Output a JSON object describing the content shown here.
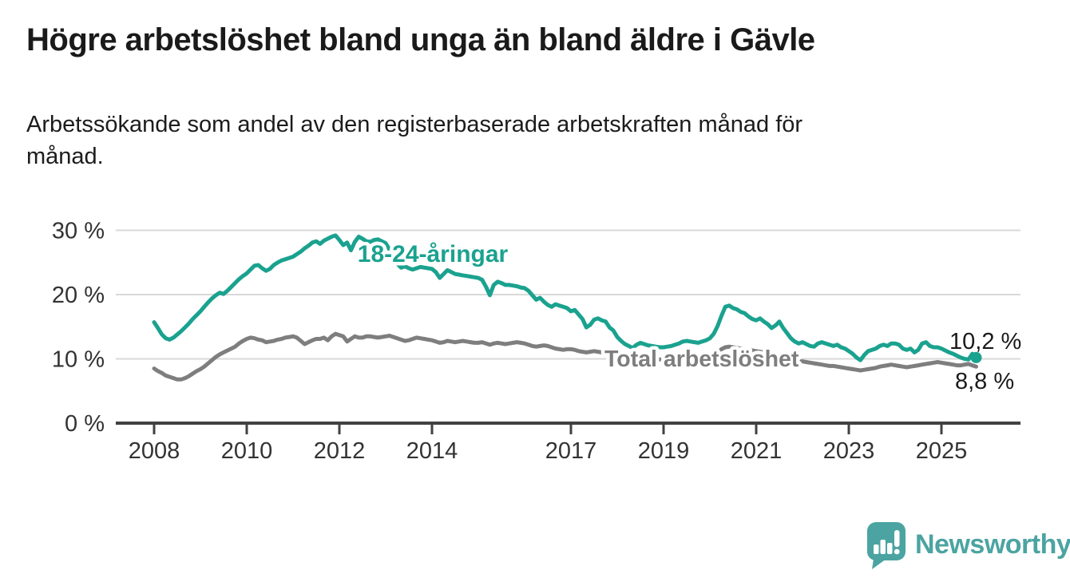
{
  "page": {
    "title": "Högre arbetslöshet bland unga än bland äldre i Gävle",
    "subtitle": "Arbetssökande som andel av den registerbaserade arbetskraften månad för månad."
  },
  "branding": {
    "name": "Newsworthy",
    "color": "#4ba4a1",
    "logo_icon": "speech-bubble-bar-chart-icon"
  },
  "colors": {
    "youth_series": "#1aa28f",
    "total_series": "#7e7e7e",
    "axis_text": "#333333",
    "axis_line": "#414141",
    "gridline": "#d9d9d9",
    "value_label": "#1a1a1a"
  },
  "chart_data": {
    "type": "line",
    "title": "Högre arbetslöshet bland unga än bland äldre i Gävle",
    "subtitle": "Arbetssökande som andel av den registerbaserade arbetskraften månad för månad.",
    "x_start": "2008-01",
    "x_end": "2025-10",
    "x_tick_years": [
      2008,
      2010,
      2012,
      2014,
      2017,
      2019,
      2021,
      2023,
      2025
    ],
    "y_ticks": [
      0,
      10,
      20,
      30
    ],
    "y_tick_suffix": " %",
    "ylim": [
      0,
      31.5
    ],
    "grid": "horizontal",
    "legend_position": "inline-labels",
    "series": [
      {
        "name": "Total arbetslöshet",
        "color": "#7e7e7e",
        "end_label": "8,8 %",
        "end_value": 8.8,
        "end_dot": false,
        "values": [
          8.5,
          8.1,
          7.8,
          7.4,
          7.2,
          7.0,
          6.8,
          6.8,
          7.0,
          7.3,
          7.7,
          8.1,
          8.4,
          8.8,
          9.3,
          9.8,
          10.3,
          10.7,
          11.0,
          11.3,
          11.6,
          11.9,
          12.4,
          12.8,
          13.1,
          13.3,
          13.2,
          13.0,
          12.9,
          12.6,
          12.7,
          12.8,
          13.0,
          13.1,
          13.3,
          13.4,
          13.5,
          13.3,
          12.8,
          12.3,
          12.6,
          12.9,
          13.1,
          13.1,
          13.3,
          12.9,
          13.5,
          13.9,
          13.7,
          13.5,
          12.7,
          13.1,
          13.5,
          13.3,
          13.3,
          13.5,
          13.5,
          13.4,
          13.3,
          13.4,
          13.5,
          13.6,
          13.4,
          13.2,
          13.0,
          12.8,
          12.9,
          13.1,
          13.3,
          13.2,
          13.1,
          13.0,
          12.9,
          12.7,
          12.5,
          12.6,
          12.8,
          12.7,
          12.6,
          12.7,
          12.8,
          12.7,
          12.6,
          12.5,
          12.5,
          12.6,
          12.4,
          12.2,
          12.4,
          12.5,
          12.4,
          12.3,
          12.4,
          12.5,
          12.6,
          12.5,
          12.4,
          12.2,
          12.0,
          11.9,
          12.0,
          12.1,
          12.0,
          11.8,
          11.6,
          11.5,
          11.4,
          11.5,
          11.5,
          11.4,
          11.2,
          11.1,
          11.0,
          11.1,
          11.2,
          11.1,
          11.0,
          10.9,
          10.8,
          10.7,
          10.6,
          10.5,
          10.4,
          10.3,
          10.2,
          10.2,
          10.3,
          10.2,
          10.1,
          10.0,
          10.0,
          9.9,
          9.9,
          9.9,
          10.0,
          10.0,
          10.1,
          10.0,
          10.1,
          10.2,
          10.1,
          10.2,
          10.2,
          10.3,
          10.4,
          10.6,
          11.0,
          11.5,
          11.8,
          11.9,
          11.8,
          11.7,
          11.6,
          11.5,
          11.4,
          11.3,
          11.2,
          11.1,
          11.0,
          10.9,
          10.7,
          10.6,
          10.5,
          10.3,
          10.1,
          9.9,
          9.8,
          9.7,
          9.6,
          9.5,
          9.4,
          9.3,
          9.2,
          9.1,
          9.0,
          8.9,
          8.9,
          8.8,
          8.7,
          8.6,
          8.5,
          8.4,
          8.3,
          8.2,
          8.3,
          8.4,
          8.5,
          8.6,
          8.8,
          8.9,
          9.0,
          9.1,
          9.0,
          8.9,
          8.8,
          8.7,
          8.8,
          8.9,
          9.0,
          9.1,
          9.2,
          9.3,
          9.4,
          9.5,
          9.4,
          9.3,
          9.2,
          9.1,
          9.0,
          9.0,
          9.1,
          9.2,
          9.0,
          8.8
        ]
      },
      {
        "name": "18-24-åringar",
        "color": "#1aa28f",
        "end_label": "10,2 %",
        "end_value": 10.2,
        "end_dot": true,
        "values": [
          15.7,
          14.8,
          13.8,
          13.2,
          13.0,
          13.3,
          13.8,
          14.3,
          14.9,
          15.5,
          16.2,
          16.8,
          17.4,
          18.1,
          18.8,
          19.4,
          19.9,
          20.3,
          20.1,
          20.6,
          21.2,
          21.8,
          22.4,
          22.9,
          23.3,
          23.9,
          24.5,
          24.6,
          24.1,
          23.7,
          24.0,
          24.6,
          25.0,
          25.3,
          25.5,
          25.7,
          25.9,
          26.3,
          26.7,
          27.2,
          27.6,
          28.1,
          28.3,
          27.9,
          28.4,
          28.7,
          29.0,
          29.2,
          28.5,
          27.7,
          28.1,
          26.9,
          28.2,
          29.0,
          28.7,
          28.3,
          28.2,
          28.5,
          28.6,
          28.3,
          28.0,
          27.0,
          25.8,
          24.8,
          24.2,
          24.4,
          24.1,
          23.9,
          24.1,
          24.3,
          24.2,
          24.1,
          24.0,
          23.5,
          22.6,
          23.2,
          23.8,
          23.5,
          23.2,
          23.1,
          23.0,
          22.9,
          22.8,
          22.7,
          22.6,
          22.3,
          21.2,
          19.9,
          21.5,
          22.0,
          21.8,
          21.5,
          21.5,
          21.4,
          21.3,
          21.1,
          21.0,
          20.6,
          19.9,
          19.2,
          19.5,
          18.9,
          18.4,
          18.1,
          18.5,
          18.3,
          18.1,
          17.9,
          17.4,
          17.6,
          16.9,
          16.2,
          14.9,
          15.3,
          16.1,
          16.3,
          16.0,
          15.8,
          14.9,
          14.4,
          13.4,
          12.8,
          12.3,
          12.0,
          11.7,
          12.2,
          12.5,
          12.3,
          12.1,
          12.0,
          11.9,
          11.8,
          11.8,
          11.9,
          12.0,
          12.2,
          12.4,
          12.7,
          12.8,
          12.7,
          12.6,
          12.5,
          12.7,
          12.9,
          13.2,
          13.9,
          15.1,
          16.7,
          18.1,
          18.3,
          17.9,
          17.7,
          17.3,
          17.1,
          16.6,
          16.2,
          16.0,
          16.3,
          15.8,
          15.4,
          14.8,
          15.2,
          15.8,
          14.8,
          14.0,
          13.2,
          12.7,
          12.4,
          12.6,
          12.3,
          12.0,
          11.9,
          12.4,
          12.6,
          12.4,
          12.2,
          12.0,
          12.2,
          11.8,
          11.6,
          11.2,
          10.8,
          10.2,
          9.8,
          10.6,
          11.2,
          11.4,
          11.6,
          12.0,
          12.2,
          12.0,
          12.4,
          12.4,
          12.2,
          11.6,
          11.4,
          11.6,
          11.0,
          11.4,
          12.4,
          12.6,
          12.0,
          11.8,
          11.8,
          11.6,
          11.3,
          11.0,
          10.8,
          10.5,
          10.2,
          10.0,
          9.9,
          10.8,
          10.2
        ]
      }
    ]
  }
}
